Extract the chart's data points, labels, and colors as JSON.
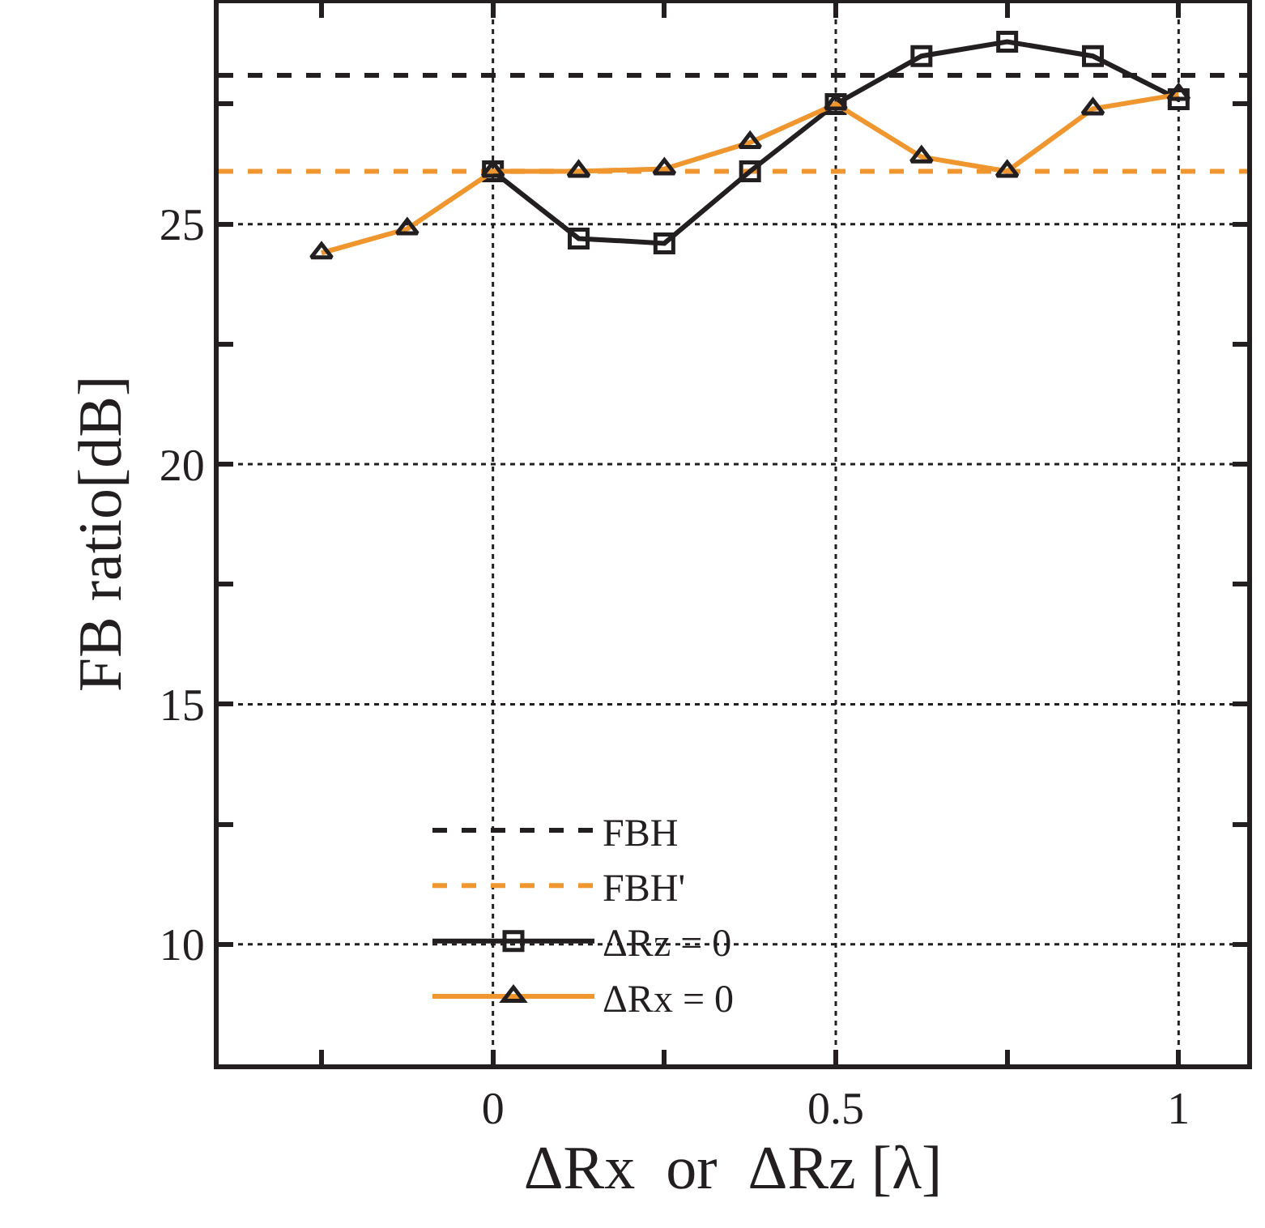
{
  "chart_data": {
    "type": "line",
    "xlabel": "ΔRx  or  ΔRz [λ]",
    "ylabel": "FB ratio[dB]",
    "x": [
      -0.25,
      -0.125,
      0,
      0.125,
      0.25,
      0.375,
      0.5,
      0.625,
      0.75,
      0.875,
      1
    ],
    "series": [
      {
        "name": "ΔRz = 0",
        "color": "#231f20",
        "marker": "square",
        "values": [
          null,
          null,
          26.1,
          24.7,
          24.6,
          26.1,
          27.5,
          28.5,
          28.8,
          28.5,
          27.6
        ]
      },
      {
        "name": "ΔRx = 0",
        "color": "#f0962e",
        "marker": "triangle",
        "values": [
          24.4,
          24.9,
          26.1,
          26.1,
          26.15,
          26.7,
          27.5,
          26.4,
          26.1,
          27.4,
          27.7
        ]
      }
    ],
    "ref_lines": [
      {
        "axis": "y",
        "value": 28.1,
        "label": "FBH",
        "color": "#231f20",
        "line_style": "dashed"
      },
      {
        "axis": "y",
        "value": 26.1,
        "label": "FBH'",
        "color": "#f0962e",
        "line_style": "dashed"
      }
    ],
    "xlim": [
      -0.4,
      1.1
    ],
    "ylim": [
      7.5,
      29.6
    ],
    "xticks": [
      {
        "value": -0.25,
        "label": null
      },
      0,
      {
        "value": 0.25,
        "label": null
      },
      0.5,
      {
        "value": 0.75,
        "label": null
      },
      1
    ],
    "yticks": [
      10,
      {
        "value": 12.5,
        "label": null
      },
      15,
      {
        "value": 17.5,
        "label": null
      },
      20,
      {
        "value": 22.5,
        "label": null
      },
      25,
      {
        "value": 27.5,
        "label": null
      }
    ],
    "grid": true,
    "legend": "bottom left",
    "line_style": "solid"
  }
}
